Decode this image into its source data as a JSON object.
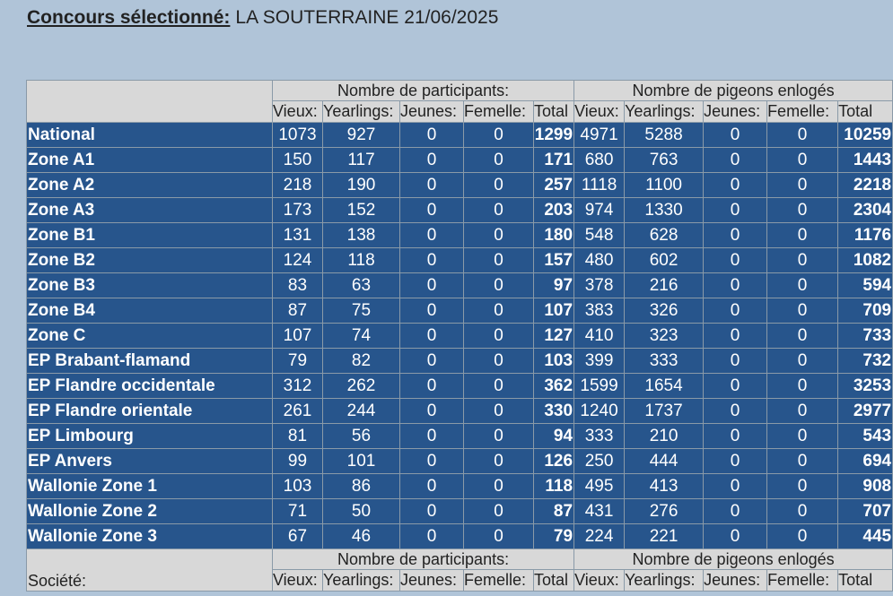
{
  "heading": {
    "label": "Concours sélectionné:",
    "value": "LA SOUTERRAINE 21/06/2025"
  },
  "table": {
    "group_participants": "Nombre de participants:",
    "group_pigeons": "Nombre de pigeons enlogés",
    "columns_participants": [
      "Vieux:",
      "Yearlings:",
      "Jeunes:",
      "Femelle:",
      "Total"
    ],
    "columns_pigeons": [
      "Vieux:",
      "Yearlings:",
      "Jeunes:",
      "Femelle:",
      "Total"
    ],
    "rows": [
      {
        "name": "National",
        "p": [
          "1073",
          "927",
          "0",
          "0",
          "1299"
        ],
        "g": [
          "4971",
          "5288",
          "0",
          "0",
          "10259"
        ]
      },
      {
        "name": "Zone A1",
        "p": [
          "150",
          "117",
          "0",
          "0",
          "171"
        ],
        "g": [
          "680",
          "763",
          "0",
          "0",
          "1443"
        ]
      },
      {
        "name": "Zone A2",
        "p": [
          "218",
          "190",
          "0",
          "0",
          "257"
        ],
        "g": [
          "1118",
          "1100",
          "0",
          "0",
          "2218"
        ]
      },
      {
        "name": "Zone A3",
        "p": [
          "173",
          "152",
          "0",
          "0",
          "203"
        ],
        "g": [
          "974",
          "1330",
          "0",
          "0",
          "2304"
        ]
      },
      {
        "name": "Zone B1",
        "p": [
          "131",
          "138",
          "0",
          "0",
          "180"
        ],
        "g": [
          "548",
          "628",
          "0",
          "0",
          "1176"
        ]
      },
      {
        "name": "Zone B2",
        "p": [
          "124",
          "118",
          "0",
          "0",
          "157"
        ],
        "g": [
          "480",
          "602",
          "0",
          "0",
          "1082"
        ]
      },
      {
        "name": "Zone B3",
        "p": [
          "83",
          "63",
          "0",
          "0",
          "97"
        ],
        "g": [
          "378",
          "216",
          "0",
          "0",
          "594"
        ]
      },
      {
        "name": "Zone B4",
        "p": [
          "87",
          "75",
          "0",
          "0",
          "107"
        ],
        "g": [
          "383",
          "326",
          "0",
          "0",
          "709"
        ]
      },
      {
        "name": "Zone C",
        "p": [
          "107",
          "74",
          "0",
          "0",
          "127"
        ],
        "g": [
          "410",
          "323",
          "0",
          "0",
          "733"
        ]
      },
      {
        "name": "EP Brabant-flamand",
        "p": [
          "79",
          "82",
          "0",
          "0",
          "103"
        ],
        "g": [
          "399",
          "333",
          "0",
          "0",
          "732"
        ]
      },
      {
        "name": "EP Flandre occidentale",
        "p": [
          "312",
          "262",
          "0",
          "0",
          "362"
        ],
        "g": [
          "1599",
          "1654",
          "0",
          "0",
          "3253"
        ]
      },
      {
        "name": "EP Flandre orientale",
        "p": [
          "261",
          "244",
          "0",
          "0",
          "330"
        ],
        "g": [
          "1240",
          "1737",
          "0",
          "0",
          "2977"
        ]
      },
      {
        "name": "EP Limbourg",
        "p": [
          "81",
          "56",
          "0",
          "0",
          "94"
        ],
        "g": [
          "333",
          "210",
          "0",
          "0",
          "543"
        ]
      },
      {
        "name": "EP Anvers",
        "p": [
          "99",
          "101",
          "0",
          "0",
          "126"
        ],
        "g": [
          "250",
          "444",
          "0",
          "0",
          "694"
        ]
      },
      {
        "name": "Wallonie Zone 1",
        "p": [
          "103",
          "86",
          "0",
          "0",
          "118"
        ],
        "g": [
          "495",
          "413",
          "0",
          "0",
          "908"
        ]
      },
      {
        "name": "Wallonie Zone 2",
        "p": [
          "71",
          "50",
          "0",
          "0",
          "87"
        ],
        "g": [
          "431",
          "276",
          "0",
          "0",
          "707"
        ]
      },
      {
        "name": "Wallonie Zone 3",
        "p": [
          "67",
          "46",
          "0",
          "0",
          "79"
        ],
        "g": [
          "224",
          "221",
          "0",
          "0",
          "445"
        ]
      }
    ]
  },
  "societe": {
    "label": "Société:",
    "group_participants": "Nombre de participants:",
    "group_pigeons": "Nombre de pigeons enlogés",
    "columns_participants": [
      "Vieux:",
      "Yearlings:",
      "Jeunes:",
      "Femelle:",
      "Total"
    ],
    "columns_pigeons": [
      "Vieux:",
      "Yearlings:",
      "Jeunes:",
      "Femelle:",
      "Total"
    ]
  }
}
